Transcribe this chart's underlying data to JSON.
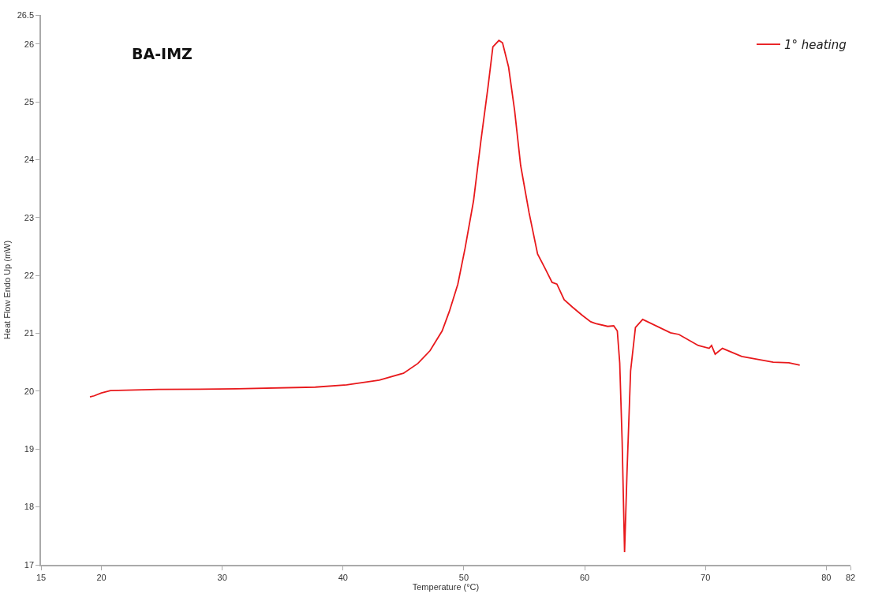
{
  "chart_data": {
    "type": "line",
    "title": "BA-IMZ",
    "xlabel": "Temperature (°C)",
    "ylabel": "Heat Flow Endo Up (mW)",
    "xlim": [
      15,
      82
    ],
    "xticks": [
      15,
      20,
      30,
      40,
      50,
      60,
      70,
      80,
      82
    ],
    "ylim": [
      17,
      26.5
    ],
    "yticks": [
      17,
      18,
      19,
      20,
      21,
      22,
      23,
      24,
      25,
      26,
      26.5
    ],
    "grid": false,
    "legend": "top right",
    "marker": "none",
    "line_style": "solid",
    "series": [
      {
        "name": "1° heating",
        "color": "#e8191c",
        "x": [
          19.05,
          19.4,
          20.0,
          20.75,
          24.7,
          31.2,
          37.7,
          40.3,
          43.0,
          45.0,
          46.2,
          47.2,
          48.2,
          48.8,
          49.5,
          50.1,
          50.8,
          51.4,
          52.0,
          52.4,
          52.9,
          53.2,
          53.7,
          54.2,
          54.7,
          55.4,
          56.1,
          56.7,
          57.3,
          57.7,
          58.3,
          59.0,
          59.8,
          60.5,
          60.9,
          61.9,
          62.4,
          62.7,
          62.9,
          63.1,
          63.3,
          63.5,
          63.8,
          64.2,
          64.8,
          67.1,
          67.8,
          69.4,
          70.3,
          70.5,
          70.8,
          71.4,
          73.0,
          75.6,
          76.9,
          77.8
        ],
        "values": [
          19.9,
          19.92,
          19.97,
          20.01,
          20.03,
          20.04,
          20.07,
          20.11,
          20.19,
          20.31,
          20.48,
          20.7,
          21.04,
          21.38,
          21.85,
          22.47,
          23.29,
          24.31,
          25.26,
          25.95,
          26.06,
          26.02,
          25.6,
          24.85,
          23.9,
          23.08,
          22.37,
          22.13,
          21.88,
          21.85,
          21.58,
          21.45,
          21.31,
          21.2,
          21.17,
          21.12,
          21.13,
          21.04,
          20.49,
          19.13,
          17.22,
          18.58,
          20.35,
          21.1,
          21.24,
          21.01,
          20.98,
          20.79,
          20.74,
          20.79,
          20.64,
          20.74,
          20.6,
          20.5,
          20.49,
          20.45
        ]
      }
    ]
  }
}
